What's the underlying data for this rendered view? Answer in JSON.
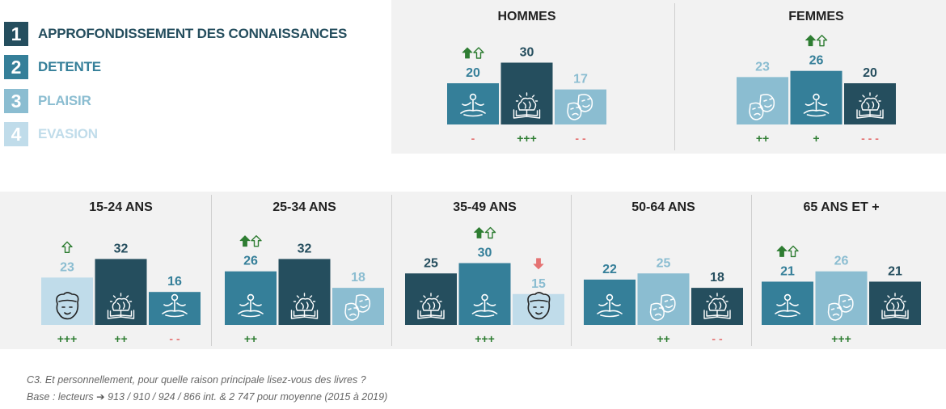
{
  "colors": {
    "c1": "#254e5e",
    "c2": "#357f99",
    "c3": "#8bbdd1",
    "c4": "#c0dcea",
    "plus": "#2e7d32",
    "minus": "#e57373",
    "up_filled": "#2e7d32",
    "down_filled": "#e57373"
  },
  "legend": [
    {
      "num": "1",
      "label": "APPROFONDISSEMENT DES CONNAISSANCES",
      "color": "#254e5e",
      "text_color": "#254e5e"
    },
    {
      "num": "2",
      "label": "DETENTE",
      "color": "#357f99",
      "text_color": "#357f99"
    },
    {
      "num": "3",
      "label": "PLAISIR",
      "color": "#8bbdd1",
      "text_color": "#8bbdd1"
    },
    {
      "num": "4",
      "label": "EVASION",
      "color": "#c0dcea",
      "text_color": "#c0dcea"
    }
  ],
  "chart_data": [
    {
      "type": "bar",
      "title": "HOMMES",
      "bars": [
        {
          "value": 20,
          "category": 2,
          "icon": "meditation-icon",
          "arrows": [
            "up-filled",
            "up-outline"
          ],
          "sig": "-"
        },
        {
          "value": 30,
          "category": 1,
          "icon": "brain-book-icon",
          "arrows": [],
          "sig": "+++"
        },
        {
          "value": 17,
          "category": 3,
          "icon": "theater-masks-icon",
          "arrows": [],
          "sig": "- -"
        }
      ]
    },
    {
      "type": "bar",
      "title": "FEMMES",
      "bars": [
        {
          "value": 23,
          "category": 3,
          "icon": "theater-masks-icon",
          "arrows": [],
          "sig": "++"
        },
        {
          "value": 26,
          "category": 2,
          "icon": "meditation-icon",
          "arrows": [
            "up-filled",
            "up-outline"
          ],
          "sig": "+"
        },
        {
          "value": 20,
          "category": 1,
          "icon": "brain-book-icon",
          "arrows": [],
          "sig": "- - -"
        }
      ]
    },
    {
      "type": "bar",
      "title": "15-24 ANS",
      "bars": [
        {
          "value": 23,
          "category": 4,
          "icon": "dreaming-head-icon",
          "arrows": [
            "up-outline"
          ],
          "sig": "+++"
        },
        {
          "value": 32,
          "category": 1,
          "icon": "brain-book-icon",
          "arrows": [],
          "sig": "++"
        },
        {
          "value": 16,
          "category": 2,
          "icon": "meditation-icon",
          "arrows": [],
          "sig": "- -"
        }
      ]
    },
    {
      "type": "bar",
      "title": "25-34 ANS",
      "bars": [
        {
          "value": 26,
          "category": 2,
          "icon": "meditation-icon",
          "arrows": [
            "up-filled",
            "up-outline"
          ],
          "sig": "++"
        },
        {
          "value": 32,
          "category": 1,
          "icon": "brain-book-icon",
          "arrows": [],
          "sig": ""
        },
        {
          "value": 18,
          "category": 3,
          "icon": "theater-masks-icon",
          "arrows": [],
          "sig": ""
        }
      ]
    },
    {
      "type": "bar",
      "title": "35-49 ANS",
      "bars": [
        {
          "value": 25,
          "category": 1,
          "icon": "brain-book-icon",
          "arrows": [],
          "sig": ""
        },
        {
          "value": 30,
          "category": 2,
          "icon": "meditation-icon",
          "arrows": [
            "up-filled",
            "up-outline"
          ],
          "sig": "+++"
        },
        {
          "value": 15,
          "category": 4,
          "icon": "dreaming-head-icon",
          "arrows": [
            "down-filled"
          ],
          "sig": ""
        }
      ]
    },
    {
      "type": "bar",
      "title": "50-64 ANS",
      "bars": [
        {
          "value": 22,
          "category": 2,
          "icon": "meditation-icon",
          "arrows": [],
          "sig": ""
        },
        {
          "value": 25,
          "category": 3,
          "icon": "theater-masks-icon",
          "arrows": [],
          "sig": "++"
        },
        {
          "value": 18,
          "category": 1,
          "icon": "brain-book-icon",
          "arrows": [],
          "sig": "- -"
        }
      ]
    },
    {
      "type": "bar",
      "title": "65 ANS ET +",
      "bars": [
        {
          "value": 21,
          "category": 2,
          "icon": "meditation-icon",
          "arrows": [
            "up-filled",
            "up-outline"
          ],
          "sig": ""
        },
        {
          "value": 26,
          "category": 3,
          "icon": "theater-masks-icon",
          "arrows": [],
          "sig": "+++"
        },
        {
          "value": 21,
          "category": 1,
          "icon": "brain-book-icon",
          "arrows": [],
          "sig": ""
        }
      ]
    }
  ],
  "footnote": {
    "line1": "C3. Et personnellement, pour quelle raison principale lisez-vous des livres ?",
    "line2_prefix": "Base : lecteurs",
    "line2_suffix": "913 / 910 / 924 / 866 int. & 2 747 pour moyenne (2015 à 2019)"
  }
}
